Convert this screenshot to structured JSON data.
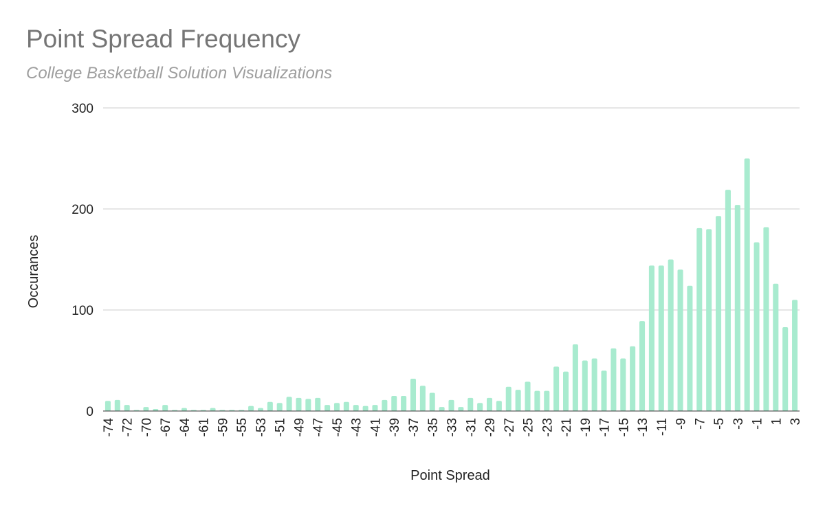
{
  "chart_data": {
    "type": "bar",
    "title": "Point Spread Frequency",
    "subtitle": "College Basketball Solution Visualizations",
    "xlabel": "Point Spread",
    "ylabel": "Occurances",
    "ylim": [
      0,
      300
    ],
    "yticks": [
      0,
      100,
      200,
      300
    ],
    "grid": true,
    "legend": "none",
    "bar_color": "#a8ebcf",
    "categories": [
      "-74",
      "-73",
      "-72",
      "-71",
      "-70",
      "-68",
      "-67",
      "-65",
      "-64",
      "-62",
      "-61",
      "-60",
      "-59",
      "-56",
      "-55",
      "-54",
      "-53",
      "-52",
      "-51",
      "-50",
      "-49",
      "-48",
      "-47",
      "-46",
      "-45",
      "-44",
      "-43",
      "-42",
      "-41",
      "-40",
      "-39",
      "-38",
      "-37",
      "-36",
      "-35",
      "-34",
      "-33",
      "-32",
      "-31",
      "-30",
      "-29",
      "-28",
      "-27",
      "-26",
      "-25",
      "-24",
      "-23",
      "-22",
      "-21",
      "-20",
      "-19",
      "-18",
      "-17",
      "-16",
      "-15",
      "-14",
      "-13",
      "-12",
      "-11",
      "-10",
      "-9",
      "-8",
      "-7",
      "-6",
      "-5",
      "-4",
      "-3",
      "-2",
      "-1",
      "0",
      "1",
      "2",
      "3"
    ],
    "values": [
      10,
      11,
      6,
      1,
      4,
      2,
      6,
      1,
      3,
      1,
      1,
      3,
      1,
      1,
      1,
      5,
      3,
      9,
      8,
      14,
      13,
      12,
      13,
      6,
      8,
      9,
      6,
      5,
      6,
      11,
      15,
      15,
      32,
      25,
      18,
      4,
      11,
      4,
      13,
      8,
      13,
      10,
      24,
      21,
      29,
      20,
      20,
      44,
      39,
      66,
      50,
      52,
      40,
      62,
      52,
      64,
      89,
      144,
      144,
      150,
      140,
      124,
      181,
      180,
      193,
      219,
      204,
      250,
      167,
      182,
      126,
      83,
      110
    ],
    "tick_labels": [
      "-74",
      "-72",
      "-70",
      "-67",
      "-64",
      "-61",
      "-59",
      "-55",
      "-53",
      "-51",
      "-49",
      "-47",
      "-45",
      "-43",
      "-41",
      "-39",
      "-37",
      "-35",
      "-33",
      "-31",
      "-29",
      "-27",
      "-25",
      "-23",
      "-21",
      "-19",
      "-17",
      "-15",
      "-13",
      "-11",
      "-9",
      "-7",
      "-5",
      "-3",
      "-1",
      "1",
      "3"
    ]
  }
}
